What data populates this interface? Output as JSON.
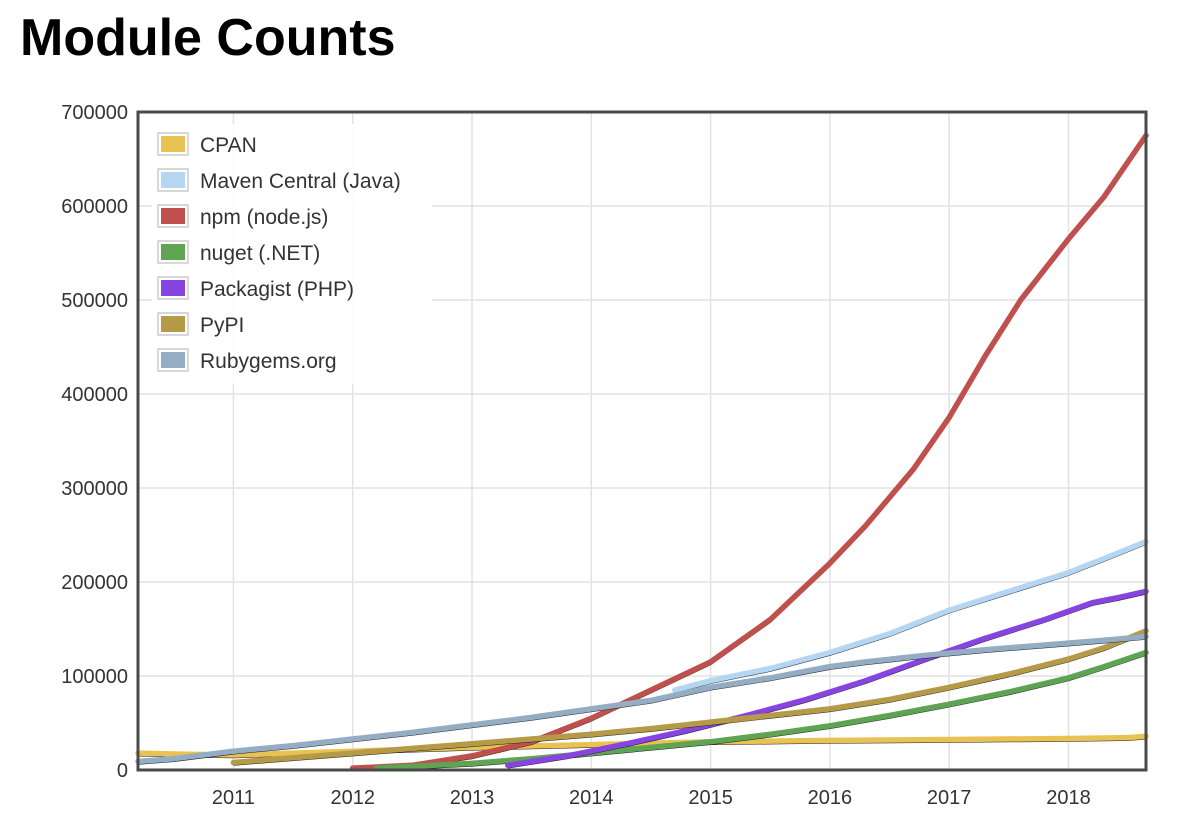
{
  "page": {
    "title": "Module Counts"
  },
  "chart_data": {
    "type": "line",
    "title": "Module Counts",
    "xlabel": "",
    "ylabel": "",
    "xlim": [
      2010.2,
      2018.65
    ],
    "ylim": [
      0,
      700000
    ],
    "x_ticks": [
      2011,
      2012,
      2013,
      2014,
      2015,
      2016,
      2017,
      2018
    ],
    "y_ticks": [
      0,
      100000,
      200000,
      300000,
      400000,
      500000,
      600000,
      700000
    ],
    "grid": true,
    "legend_position": "top-left",
    "series": [
      {
        "name": "CPAN",
        "color": "#e8c252",
        "x": [
          2010.2,
          2010.5,
          2011,
          2012,
          2013,
          2014,
          2015,
          2016,
          2017,
          2018,
          2018.5,
          2018.65
        ],
        "y": [
          18000,
          17000,
          16000,
          20000,
          24000,
          27000,
          30000,
          31500,
          32500,
          33500,
          34500,
          36000
        ]
      },
      {
        "name": "Maven Central (Java)",
        "color": "#b5d6f2",
        "x": [
          2014.7,
          2015,
          2015.5,
          2016,
          2016.5,
          2017,
          2017.5,
          2018,
          2018.3,
          2018.65
        ],
        "y": [
          85000,
          95000,
          108000,
          125000,
          145000,
          170000,
          190000,
          210000,
          225000,
          243000
        ]
      },
      {
        "name": "npm (node.js)",
        "color": "#c0504d",
        "x": [
          2012,
          2012.5,
          2013,
          2013.5,
          2014,
          2014.5,
          2015,
          2015.5,
          2016,
          2016.3,
          2016.7,
          2017,
          2017.3,
          2017.6,
          2018,
          2018.3,
          2018.65
        ],
        "y": [
          2000,
          5000,
          15000,
          30000,
          55000,
          85000,
          115000,
          160000,
          220000,
          260000,
          320000,
          375000,
          440000,
          500000,
          565000,
          610000,
          675000
        ]
      },
      {
        "name": "nuget (.NET)",
        "color": "#5ea452",
        "x": [
          2012.2,
          2013,
          2013.5,
          2014,
          2014.5,
          2015,
          2015.5,
          2016,
          2016.5,
          2017,
          2017.5,
          2018,
          2018.3,
          2018.65
        ],
        "y": [
          2000,
          7000,
          12000,
          18000,
          24000,
          30000,
          38000,
          47000,
          58000,
          70000,
          83000,
          98000,
          110000,
          125000
        ]
      },
      {
        "name": "Packagist (PHP)",
        "color": "#8844e0",
        "x": [
          2013.3,
          2013.8,
          2014.3,
          2014.8,
          2015.3,
          2015.8,
          2016.3,
          2016.8,
          2017.3,
          2017.8,
          2018.2,
          2018.4,
          2018.65
        ],
        "y": [
          5000,
          15000,
          28000,
          42000,
          58000,
          75000,
          95000,
          118000,
          140000,
          160000,
          178000,
          183000,
          190000
        ]
      },
      {
        "name": "PyPI",
        "color": "#b59a48",
        "x": [
          2011,
          2011.5,
          2012,
          2012.5,
          2013,
          2013.5,
          2014,
          2014.5,
          2015,
          2015.5,
          2016,
          2016.5,
          2017,
          2017.5,
          2018,
          2018.3,
          2018.65
        ],
        "y": [
          8000,
          13000,
          18000,
          23000,
          28000,
          33000,
          38000,
          44000,
          51000,
          58000,
          65000,
          75000,
          88000,
          102000,
          118000,
          130000,
          148000
        ]
      },
      {
        "name": "Rubygems.org",
        "color": "#94acc4",
        "x": [
          2010.2,
          2010.5,
          2011,
          2011.5,
          2012,
          2012.5,
          2013,
          2013.5,
          2014,
          2014.5,
          2015,
          2015.5,
          2016,
          2016.3,
          2016.8,
          2017.3,
          2017.8,
          2018.3,
          2018.65
        ],
        "y": [
          9000,
          12000,
          20000,
          26000,
          33000,
          40000,
          48000,
          56000,
          65000,
          74000,
          88000,
          98000,
          110000,
          115000,
          122000,
          128000,
          133000,
          138000,
          142000
        ]
      }
    ]
  }
}
